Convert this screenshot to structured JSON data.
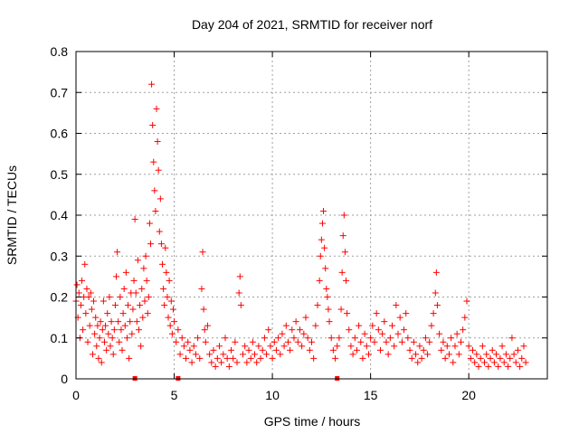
{
  "chart_data": {
    "type": "scatter",
    "title": "Day 204 of 2021, SRMTID for receiver norf",
    "xlabel": "GPS time / hours",
    "ylabel": "SRMTID / TECUs",
    "xlim": [
      0,
      24
    ],
    "ylim": [
      0,
      0.8
    ],
    "xticks": [
      0,
      5,
      10,
      15,
      20
    ],
    "xtick_labels": [
      "0",
      "5",
      "10",
      "15",
      "20"
    ],
    "yticks": [
      0,
      0.1,
      0.2,
      0.3,
      0.4,
      0.5,
      0.6,
      0.7,
      0.8
    ],
    "ytick_labels": [
      "0",
      "0.1",
      "0.2",
      "0.3",
      "0.4",
      "0.5",
      "0.6",
      "0.7",
      "0.8"
    ],
    "grid": true,
    "marker": "plus",
    "color": "#ff0000",
    "series": [
      {
        "name": "SRMTID",
        "points": [
          [
            0.0,
            0.19
          ],
          [
            0.05,
            0.23
          ],
          [
            0.1,
            0.15
          ],
          [
            0.15,
            0.21
          ],
          [
            0.2,
            0.1
          ],
          [
            0.25,
            0.18
          ],
          [
            0.3,
            0.24
          ],
          [
            0.35,
            0.12
          ],
          [
            0.4,
            0.2
          ],
          [
            0.45,
            0.28
          ],
          [
            0.5,
            0.16
          ],
          [
            0.55,
            0.22
          ],
          [
            0.6,
            0.09
          ],
          [
            0.65,
            0.2
          ],
          [
            0.7,
            0.13
          ],
          [
            0.75,
            0.21
          ],
          [
            0.8,
            0.17
          ],
          [
            0.85,
            0.06
          ],
          [
            0.9,
            0.19
          ],
          [
            0.95,
            0.11
          ],
          [
            1.0,
            0.15
          ],
          [
            1.05,
            0.08
          ],
          [
            1.1,
            0.13
          ],
          [
            1.15,
            0.05
          ],
          [
            1.2,
            0.1
          ],
          [
            1.25,
            0.14
          ],
          [
            1.3,
            0.04
          ],
          [
            1.35,
            0.12
          ],
          [
            1.4,
            0.19
          ],
          [
            1.45,
            0.09
          ],
          [
            1.5,
            0.13
          ],
          [
            1.55,
            0.07
          ],
          [
            1.6,
            0.16
          ],
          [
            1.65,
            0.11
          ],
          [
            1.7,
            0.2
          ],
          [
            1.75,
            0.08
          ],
          [
            1.8,
            0.14
          ],
          [
            1.85,
            0.1
          ],
          [
            1.9,
            0.06
          ],
          [
            1.95,
            0.12
          ],
          [
            2.0,
            0.18
          ],
          [
            2.05,
            0.25
          ],
          [
            2.1,
            0.31
          ],
          [
            2.15,
            0.14
          ],
          [
            2.2,
            0.09
          ],
          [
            2.25,
            0.2
          ],
          [
            2.3,
            0.12
          ],
          [
            2.35,
            0.07
          ],
          [
            2.4,
            0.16
          ],
          [
            2.45,
            0.22
          ],
          [
            2.5,
            0.13
          ],
          [
            2.55,
            0.26
          ],
          [
            2.6,
            0.1
          ],
          [
            2.65,
            0.18
          ],
          [
            2.7,
            0.05
          ],
          [
            2.75,
            0.14
          ],
          [
            2.8,
            0.21
          ],
          [
            2.85,
            0.11
          ],
          [
            2.9,
            0.17
          ],
          [
            2.95,
            0.24
          ],
          [
            3.0,
            0.39
          ],
          [
            3.05,
            0.21
          ],
          [
            3.1,
            0.14
          ],
          [
            3.15,
            0.29
          ],
          [
            3.2,
            0.12
          ],
          [
            3.25,
            0.18
          ],
          [
            3.3,
            0.08
          ],
          [
            3.35,
            0.22
          ],
          [
            3.4,
            0.15
          ],
          [
            3.45,
            0.27
          ],
          [
            3.5,
            0.19
          ],
          [
            3.55,
            0.3
          ],
          [
            3.6,
            0.24
          ],
          [
            3.65,
            0.16
          ],
          [
            3.7,
            0.2
          ],
          [
            3.75,
            0.38
          ],
          [
            3.8,
            0.33
          ],
          [
            3.85,
            0.72
          ],
          [
            3.9,
            0.62
          ],
          [
            3.95,
            0.53
          ],
          [
            4.0,
            0.46
          ],
          [
            4.05,
            0.41
          ],
          [
            4.1,
            0.66
          ],
          [
            4.15,
            0.58
          ],
          [
            4.2,
            0.51
          ],
          [
            4.25,
            0.36
          ],
          [
            4.3,
            0.44
          ],
          [
            4.35,
            0.33
          ],
          [
            4.4,
            0.28
          ],
          [
            4.45,
            0.22
          ],
          [
            4.5,
            0.18
          ],
          [
            4.55,
            0.32
          ],
          [
            4.6,
            0.26
          ],
          [
            4.65,
            0.2
          ],
          [
            4.7,
            0.15
          ],
          [
            4.75,
            0.24
          ],
          [
            4.8,
            0.13
          ],
          [
            4.85,
            0.19
          ],
          [
            4.9,
            0.11
          ],
          [
            4.95,
            0.17
          ],
          [
            5.0,
            0.14
          ],
          [
            5.1,
            0.09
          ],
          [
            5.2,
            0.12
          ],
          [
            5.3,
            0.06
          ],
          [
            5.4,
            0.1
          ],
          [
            5.5,
            0.08
          ],
          [
            5.6,
            0.05
          ],
          [
            5.7,
            0.09
          ],
          [
            5.8,
            0.07
          ],
          [
            5.9,
            0.04
          ],
          [
            6.0,
            0.08
          ],
          [
            6.1,
            0.06
          ],
          [
            6.2,
            0.1
          ],
          [
            6.3,
            0.05
          ],
          [
            6.4,
            0.22
          ],
          [
            6.45,
            0.31
          ],
          [
            6.5,
            0.17
          ],
          [
            6.55,
            0.12
          ],
          [
            6.6,
            0.09
          ],
          [
            6.7,
            0.13
          ],
          [
            6.8,
            0.06
          ],
          [
            6.9,
            0.04
          ],
          [
            7.0,
            0.07
          ],
          [
            7.1,
            0.03
          ],
          [
            7.2,
            0.05
          ],
          [
            7.3,
            0.08
          ],
          [
            7.4,
            0.04
          ],
          [
            7.5,
            0.06
          ],
          [
            7.6,
            0.1
          ],
          [
            7.7,
            0.05
          ],
          [
            7.8,
            0.03
          ],
          [
            7.9,
            0.07
          ],
          [
            8.0,
            0.05
          ],
          [
            8.1,
            0.09
          ],
          [
            8.2,
            0.04
          ],
          [
            8.3,
            0.21
          ],
          [
            8.35,
            0.25
          ],
          [
            8.4,
            0.18
          ],
          [
            8.5,
            0.06
          ],
          [
            8.6,
            0.08
          ],
          [
            8.7,
            0.04
          ],
          [
            8.8,
            0.07
          ],
          [
            8.9,
            0.05
          ],
          [
            9.0,
            0.09
          ],
          [
            9.1,
            0.06
          ],
          [
            9.2,
            0.04
          ],
          [
            9.3,
            0.08
          ],
          [
            9.4,
            0.05
          ],
          [
            9.5,
            0.07
          ],
          [
            9.6,
            0.1
          ],
          [
            9.7,
            0.06
          ],
          [
            9.8,
            0.12
          ],
          [
            9.9,
            0.08
          ],
          [
            10.0,
            0.05
          ],
          [
            10.1,
            0.09
          ],
          [
            10.2,
            0.07
          ],
          [
            10.3,
            0.1
          ],
          [
            10.4,
            0.06
          ],
          [
            10.5,
            0.11
          ],
          [
            10.6,
            0.08
          ],
          [
            10.7,
            0.13
          ],
          [
            10.8,
            0.09
          ],
          [
            10.9,
            0.07
          ],
          [
            11.0,
            0.12
          ],
          [
            11.1,
            0.1
          ],
          [
            11.2,
            0.14
          ],
          [
            11.3,
            0.09
          ],
          [
            11.4,
            0.12
          ],
          [
            11.5,
            0.08
          ],
          [
            11.6,
            0.11
          ],
          [
            11.7,
            0.15
          ],
          [
            11.8,
            0.1
          ],
          [
            11.9,
            0.07
          ],
          [
            12.0,
            0.09
          ],
          [
            12.1,
            0.05
          ],
          [
            12.2,
            0.13
          ],
          [
            12.3,
            0.18
          ],
          [
            12.4,
            0.24
          ],
          [
            12.45,
            0.3
          ],
          [
            12.5,
            0.34
          ],
          [
            12.55,
            0.38
          ],
          [
            12.6,
            0.41
          ],
          [
            12.65,
            0.32
          ],
          [
            12.7,
            0.27
          ],
          [
            12.75,
            0.22
          ],
          [
            12.8,
            0.2
          ],
          [
            12.85,
            0.17
          ],
          [
            12.9,
            0.14
          ],
          [
            13.0,
            0.1
          ],
          [
            13.1,
            0.07
          ],
          [
            13.2,
            0.05
          ],
          [
            13.3,
            0.08
          ],
          [
            13.4,
            0.1
          ],
          [
            13.5,
            0.17
          ],
          [
            13.55,
            0.26
          ],
          [
            13.6,
            0.35
          ],
          [
            13.65,
            0.4
          ],
          [
            13.7,
            0.31
          ],
          [
            13.75,
            0.24
          ],
          [
            13.8,
            0.16
          ],
          [
            13.9,
            0.12
          ],
          [
            14.0,
            0.08
          ],
          [
            14.1,
            0.06
          ],
          [
            14.2,
            0.1
          ],
          [
            14.3,
            0.07
          ],
          [
            14.4,
            0.13
          ],
          [
            14.5,
            0.09
          ],
          [
            14.6,
            0.05
          ],
          [
            14.7,
            0.11
          ],
          [
            14.8,
            0.08
          ],
          [
            14.9,
            0.06
          ],
          [
            15.0,
            0.1
          ],
          [
            15.1,
            0.13
          ],
          [
            15.2,
            0.09
          ],
          [
            15.3,
            0.16
          ],
          [
            15.4,
            0.12
          ],
          [
            15.5,
            0.07
          ],
          [
            15.6,
            0.11
          ],
          [
            15.7,
            0.14
          ],
          [
            15.8,
            0.09
          ],
          [
            15.9,
            0.06
          ],
          [
            16.0,
            0.1
          ],
          [
            16.1,
            0.13
          ],
          [
            16.2,
            0.08
          ],
          [
            16.3,
            0.18
          ],
          [
            16.4,
            0.11
          ],
          [
            16.5,
            0.15
          ],
          [
            16.6,
            0.09
          ],
          [
            16.7,
            0.12
          ],
          [
            16.8,
            0.16
          ],
          [
            16.9,
            0.1
          ],
          [
            17.0,
            0.07
          ],
          [
            17.1,
            0.05
          ],
          [
            17.2,
            0.09
          ],
          [
            17.3,
            0.06
          ],
          [
            17.4,
            0.04
          ],
          [
            17.5,
            0.08
          ],
          [
            17.6,
            0.05
          ],
          [
            17.7,
            0.07
          ],
          [
            17.8,
            0.1
          ],
          [
            17.9,
            0.06
          ],
          [
            18.0,
            0.09
          ],
          [
            18.1,
            0.13
          ],
          [
            18.2,
            0.16
          ],
          [
            18.3,
            0.21
          ],
          [
            18.35,
            0.26
          ],
          [
            18.4,
            0.18
          ],
          [
            18.5,
            0.11
          ],
          [
            18.6,
            0.07
          ],
          [
            18.7,
            0.09
          ],
          [
            18.8,
            0.05
          ],
          [
            18.9,
            0.08
          ],
          [
            19.0,
            0.06
          ],
          [
            19.1,
            0.1
          ],
          [
            19.2,
            0.04
          ],
          [
            19.3,
            0.08
          ],
          [
            19.4,
            0.11
          ],
          [
            19.5,
            0.06
          ],
          [
            19.6,
            0.09
          ],
          [
            19.7,
            0.12
          ],
          [
            19.8,
            0.15
          ],
          [
            19.9,
            0.19
          ],
          [
            20.0,
            0.08
          ],
          [
            20.1,
            0.05
          ],
          [
            20.2,
            0.07
          ],
          [
            20.3,
            0.04
          ],
          [
            20.4,
            0.06
          ],
          [
            20.5,
            0.03
          ],
          [
            20.6,
            0.05
          ],
          [
            20.7,
            0.08
          ],
          [
            20.8,
            0.04
          ],
          [
            20.9,
            0.06
          ],
          [
            21.0,
            0.03
          ],
          [
            21.1,
            0.05
          ],
          [
            21.2,
            0.07
          ],
          [
            21.3,
            0.04
          ],
          [
            21.4,
            0.06
          ],
          [
            21.5,
            0.03
          ],
          [
            21.6,
            0.05
          ],
          [
            21.7,
            0.08
          ],
          [
            21.8,
            0.04
          ],
          [
            21.9,
            0.06
          ],
          [
            22.0,
            0.03
          ],
          [
            22.1,
            0.05
          ],
          [
            22.2,
            0.1
          ],
          [
            22.3,
            0.06
          ],
          [
            22.4,
            0.04
          ],
          [
            22.5,
            0.07
          ],
          [
            22.6,
            0.03
          ],
          [
            22.7,
            0.05
          ],
          [
            22.8,
            0.08
          ],
          [
            22.9,
            0.04
          ]
        ]
      }
    ],
    "x_markers": [
      3.0,
      5.2,
      13.3
    ]
  }
}
